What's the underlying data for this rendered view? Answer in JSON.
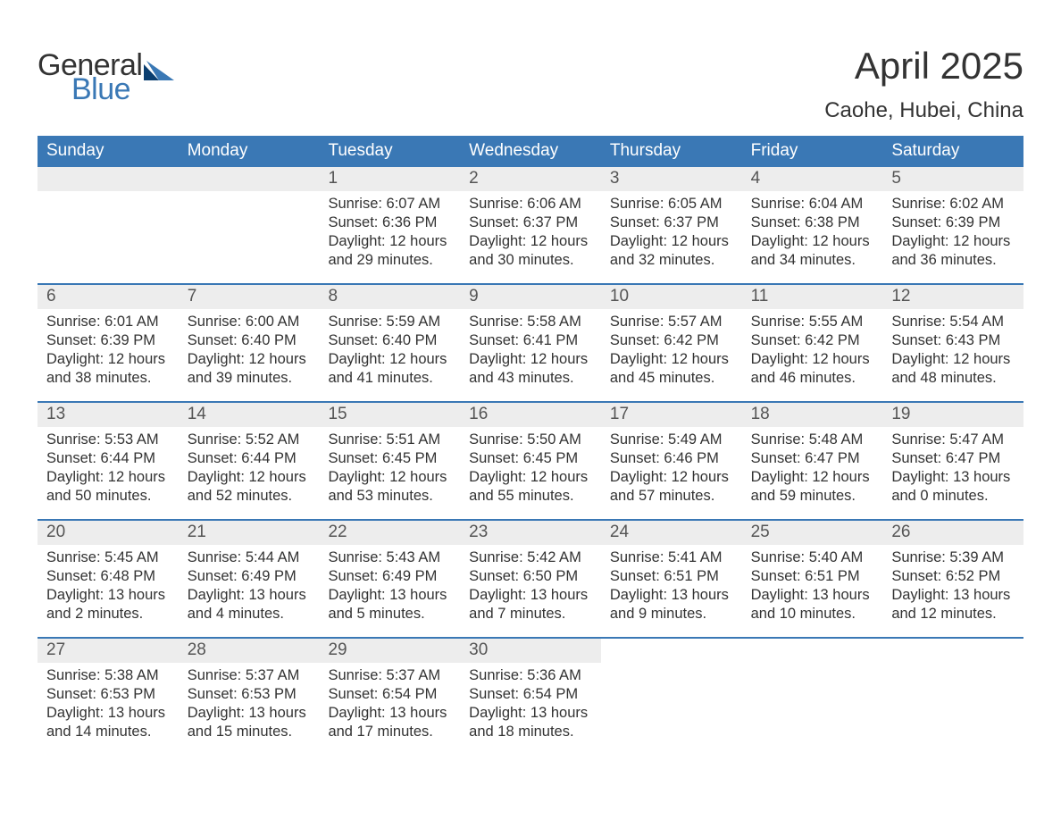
{
  "logo": {
    "word1": "General",
    "word2": "Blue",
    "accent_color": "#3a78b5"
  },
  "title": "April 2025",
  "location": "Caohe, Hubei, China",
  "colors": {
    "header_bg": "#3a78b5",
    "header_text": "#ffffff",
    "datebar_bg": "#ededed",
    "datebar_text": "#555555",
    "body_text": "#333333",
    "page_bg": "#ffffff",
    "week_divider": "#3a78b5"
  },
  "typography": {
    "title_fontsize": 42,
    "location_fontsize": 24,
    "dayhead_fontsize": 19,
    "date_fontsize": 19,
    "body_fontsize": 16.5
  },
  "day_headers": [
    "Sunday",
    "Monday",
    "Tuesday",
    "Wednesday",
    "Thursday",
    "Friday",
    "Saturday"
  ],
  "weeks": [
    [
      {
        "date": "",
        "sunrise": "",
        "sunset": "",
        "daylight1": "",
        "daylight2": ""
      },
      {
        "date": "",
        "sunrise": "",
        "sunset": "",
        "daylight1": "",
        "daylight2": ""
      },
      {
        "date": "1",
        "sunrise": "Sunrise: 6:07 AM",
        "sunset": "Sunset: 6:36 PM",
        "daylight1": "Daylight: 12 hours",
        "daylight2": "and 29 minutes."
      },
      {
        "date": "2",
        "sunrise": "Sunrise: 6:06 AM",
        "sunset": "Sunset: 6:37 PM",
        "daylight1": "Daylight: 12 hours",
        "daylight2": "and 30 minutes."
      },
      {
        "date": "3",
        "sunrise": "Sunrise: 6:05 AM",
        "sunset": "Sunset: 6:37 PM",
        "daylight1": "Daylight: 12 hours",
        "daylight2": "and 32 minutes."
      },
      {
        "date": "4",
        "sunrise": "Sunrise: 6:04 AM",
        "sunset": "Sunset: 6:38 PM",
        "daylight1": "Daylight: 12 hours",
        "daylight2": "and 34 minutes."
      },
      {
        "date": "5",
        "sunrise": "Sunrise: 6:02 AM",
        "sunset": "Sunset: 6:39 PM",
        "daylight1": "Daylight: 12 hours",
        "daylight2": "and 36 minutes."
      }
    ],
    [
      {
        "date": "6",
        "sunrise": "Sunrise: 6:01 AM",
        "sunset": "Sunset: 6:39 PM",
        "daylight1": "Daylight: 12 hours",
        "daylight2": "and 38 minutes."
      },
      {
        "date": "7",
        "sunrise": "Sunrise: 6:00 AM",
        "sunset": "Sunset: 6:40 PM",
        "daylight1": "Daylight: 12 hours",
        "daylight2": "and 39 minutes."
      },
      {
        "date": "8",
        "sunrise": "Sunrise: 5:59 AM",
        "sunset": "Sunset: 6:40 PM",
        "daylight1": "Daylight: 12 hours",
        "daylight2": "and 41 minutes."
      },
      {
        "date": "9",
        "sunrise": "Sunrise: 5:58 AM",
        "sunset": "Sunset: 6:41 PM",
        "daylight1": "Daylight: 12 hours",
        "daylight2": "and 43 minutes."
      },
      {
        "date": "10",
        "sunrise": "Sunrise: 5:57 AM",
        "sunset": "Sunset: 6:42 PM",
        "daylight1": "Daylight: 12 hours",
        "daylight2": "and 45 minutes."
      },
      {
        "date": "11",
        "sunrise": "Sunrise: 5:55 AM",
        "sunset": "Sunset: 6:42 PM",
        "daylight1": "Daylight: 12 hours",
        "daylight2": "and 46 minutes."
      },
      {
        "date": "12",
        "sunrise": "Sunrise: 5:54 AM",
        "sunset": "Sunset: 6:43 PM",
        "daylight1": "Daylight: 12 hours",
        "daylight2": "and 48 minutes."
      }
    ],
    [
      {
        "date": "13",
        "sunrise": "Sunrise: 5:53 AM",
        "sunset": "Sunset: 6:44 PM",
        "daylight1": "Daylight: 12 hours",
        "daylight2": "and 50 minutes."
      },
      {
        "date": "14",
        "sunrise": "Sunrise: 5:52 AM",
        "sunset": "Sunset: 6:44 PM",
        "daylight1": "Daylight: 12 hours",
        "daylight2": "and 52 minutes."
      },
      {
        "date": "15",
        "sunrise": "Sunrise: 5:51 AM",
        "sunset": "Sunset: 6:45 PM",
        "daylight1": "Daylight: 12 hours",
        "daylight2": "and 53 minutes."
      },
      {
        "date": "16",
        "sunrise": "Sunrise: 5:50 AM",
        "sunset": "Sunset: 6:45 PM",
        "daylight1": "Daylight: 12 hours",
        "daylight2": "and 55 minutes."
      },
      {
        "date": "17",
        "sunrise": "Sunrise: 5:49 AM",
        "sunset": "Sunset: 6:46 PM",
        "daylight1": "Daylight: 12 hours",
        "daylight2": "and 57 minutes."
      },
      {
        "date": "18",
        "sunrise": "Sunrise: 5:48 AM",
        "sunset": "Sunset: 6:47 PM",
        "daylight1": "Daylight: 12 hours",
        "daylight2": "and 59 minutes."
      },
      {
        "date": "19",
        "sunrise": "Sunrise: 5:47 AM",
        "sunset": "Sunset: 6:47 PM",
        "daylight1": "Daylight: 13 hours",
        "daylight2": "and 0 minutes."
      }
    ],
    [
      {
        "date": "20",
        "sunrise": "Sunrise: 5:45 AM",
        "sunset": "Sunset: 6:48 PM",
        "daylight1": "Daylight: 13 hours",
        "daylight2": "and 2 minutes."
      },
      {
        "date": "21",
        "sunrise": "Sunrise: 5:44 AM",
        "sunset": "Sunset: 6:49 PM",
        "daylight1": "Daylight: 13 hours",
        "daylight2": "and 4 minutes."
      },
      {
        "date": "22",
        "sunrise": "Sunrise: 5:43 AM",
        "sunset": "Sunset: 6:49 PM",
        "daylight1": "Daylight: 13 hours",
        "daylight2": "and 5 minutes."
      },
      {
        "date": "23",
        "sunrise": "Sunrise: 5:42 AM",
        "sunset": "Sunset: 6:50 PM",
        "daylight1": "Daylight: 13 hours",
        "daylight2": "and 7 minutes."
      },
      {
        "date": "24",
        "sunrise": "Sunrise: 5:41 AM",
        "sunset": "Sunset: 6:51 PM",
        "daylight1": "Daylight: 13 hours",
        "daylight2": "and 9 minutes."
      },
      {
        "date": "25",
        "sunrise": "Sunrise: 5:40 AM",
        "sunset": "Sunset: 6:51 PM",
        "daylight1": "Daylight: 13 hours",
        "daylight2": "and 10 minutes."
      },
      {
        "date": "26",
        "sunrise": "Sunrise: 5:39 AM",
        "sunset": "Sunset: 6:52 PM",
        "daylight1": "Daylight: 13 hours",
        "daylight2": "and 12 minutes."
      }
    ],
    [
      {
        "date": "27",
        "sunrise": "Sunrise: 5:38 AM",
        "sunset": "Sunset: 6:53 PM",
        "daylight1": "Daylight: 13 hours",
        "daylight2": "and 14 minutes."
      },
      {
        "date": "28",
        "sunrise": "Sunrise: 5:37 AM",
        "sunset": "Sunset: 6:53 PM",
        "daylight1": "Daylight: 13 hours",
        "daylight2": "and 15 minutes."
      },
      {
        "date": "29",
        "sunrise": "Sunrise: 5:37 AM",
        "sunset": "Sunset: 6:54 PM",
        "daylight1": "Daylight: 13 hours",
        "daylight2": "and 17 minutes."
      },
      {
        "date": "30",
        "sunrise": "Sunrise: 5:36 AM",
        "sunset": "Sunset: 6:54 PM",
        "daylight1": "Daylight: 13 hours",
        "daylight2": "and 18 minutes."
      },
      {
        "date": "",
        "sunrise": "",
        "sunset": "",
        "daylight1": "",
        "daylight2": ""
      },
      {
        "date": "",
        "sunrise": "",
        "sunset": "",
        "daylight1": "",
        "daylight2": ""
      },
      {
        "date": "",
        "sunrise": "",
        "sunset": "",
        "daylight1": "",
        "daylight2": ""
      }
    ]
  ]
}
